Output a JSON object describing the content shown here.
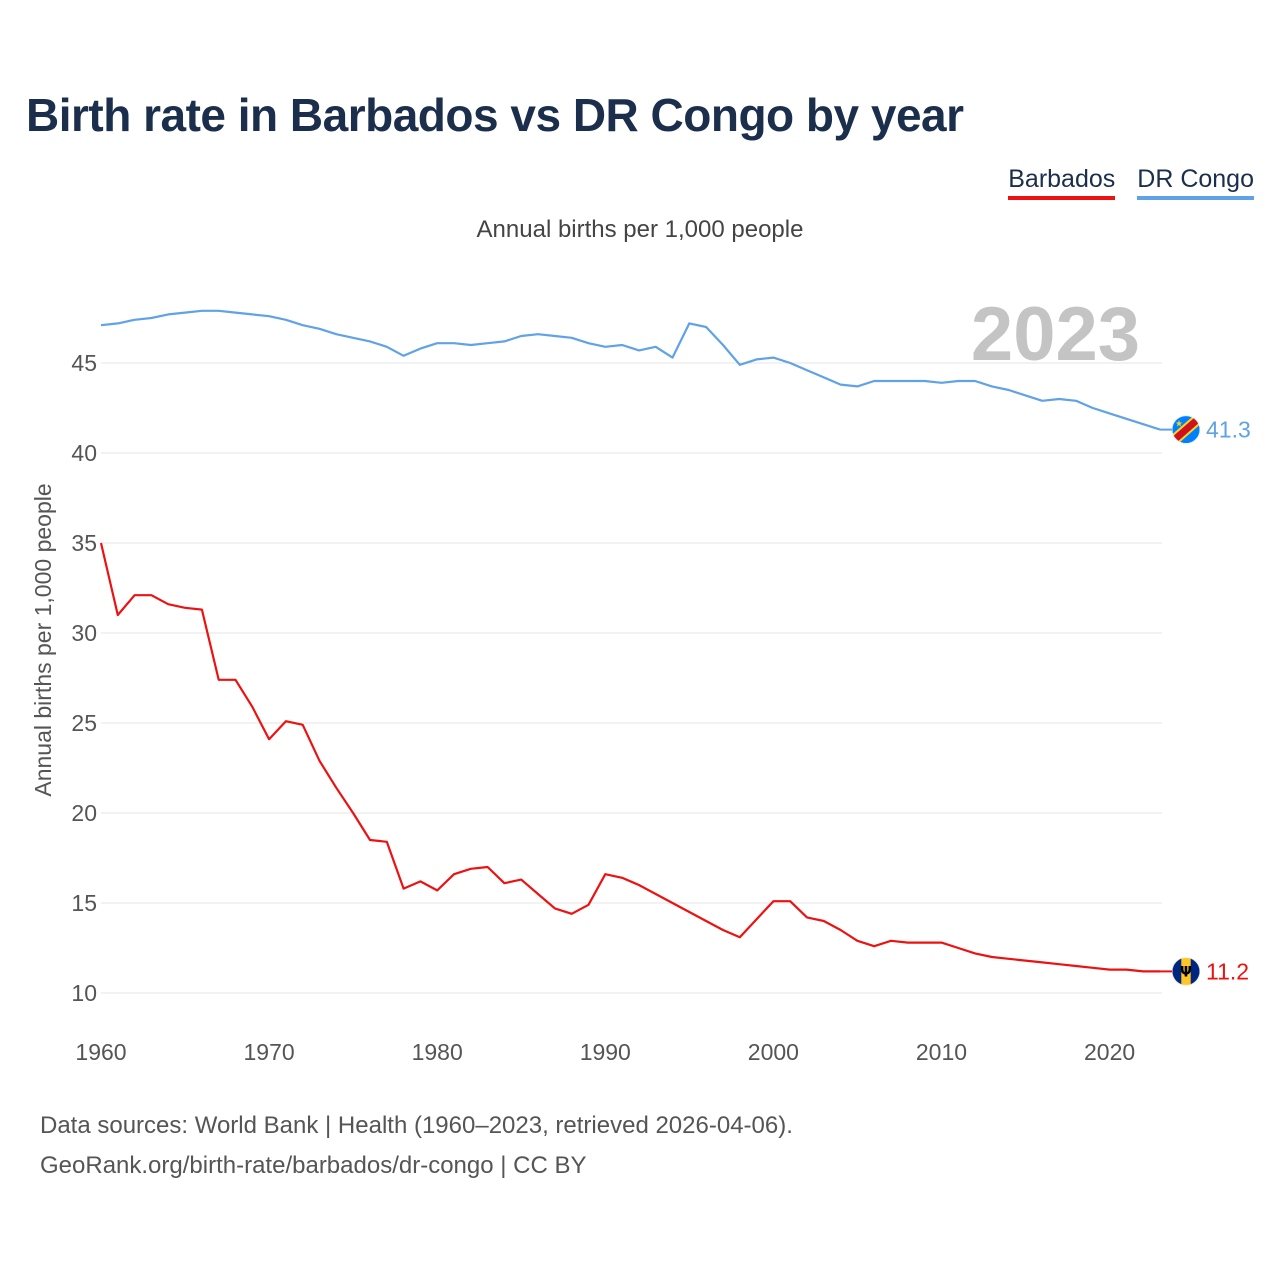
{
  "title": "Birth rate in Barbados vs DR Congo by year",
  "subtitle": "Annual births per 1,000 people",
  "legend": [
    {
      "label": "Barbados",
      "color": "#ee1111"
    },
    {
      "label": "DR Congo",
      "color": "#5fa2e6"
    }
  ],
  "source_lines": [
    "Data sources: World Bank | Health (1960–2023, retrieved 2026-04-06).",
    "GeoRank.org/birth-rate/barbados/dr-congo | CC BY"
  ],
  "chart_data": {
    "type": "line",
    "title": "Birth rate in Barbados vs DR Congo by year",
    "ylabel": "Annual births per 1,000 people",
    "xlabel": "",
    "year_label": "2023",
    "xlim": [
      1960,
      2023
    ],
    "ylim": [
      10,
      48
    ],
    "x_ticks": [
      1960,
      1970,
      1980,
      1990,
      2000,
      2010,
      2020
    ],
    "y_ticks": [
      10,
      15,
      20,
      25,
      30,
      35,
      40,
      45
    ],
    "grid": true,
    "x": [
      1960,
      1961,
      1962,
      1963,
      1964,
      1965,
      1966,
      1967,
      1968,
      1969,
      1970,
      1971,
      1972,
      1973,
      1974,
      1975,
      1976,
      1977,
      1978,
      1979,
      1980,
      1981,
      1982,
      1983,
      1984,
      1985,
      1986,
      1987,
      1988,
      1989,
      1990,
      1991,
      1992,
      1993,
      1994,
      1995,
      1996,
      1997,
      1998,
      1999,
      2000,
      2001,
      2002,
      2003,
      2004,
      2005,
      2006,
      2007,
      2008,
      2009,
      2010,
      2011,
      2012,
      2013,
      2014,
      2015,
      2016,
      2017,
      2018,
      2019,
      2020,
      2021,
      2022,
      2023
    ],
    "series": [
      {
        "name": "Barbados",
        "color": "#ee1111",
        "end_label": "11.2",
        "values": [
          35.0,
          31.0,
          32.1,
          32.1,
          31.6,
          31.4,
          31.3,
          27.4,
          27.4,
          25.9,
          24.1,
          25.1,
          24.9,
          22.9,
          21.4,
          20.0,
          18.5,
          18.4,
          15.8,
          16.2,
          15.7,
          16.6,
          16.9,
          17.0,
          16.1,
          16.3,
          15.5,
          14.7,
          14.4,
          14.9,
          16.6,
          16.4,
          16.0,
          15.5,
          15.0,
          14.5,
          14.0,
          13.5,
          13.1,
          14.1,
          15.1,
          15.1,
          14.2,
          14.0,
          13.5,
          12.9,
          12.6,
          12.9,
          12.8,
          12.8,
          12.8,
          12.5,
          12.2,
          12.0,
          11.9,
          11.8,
          11.7,
          11.6,
          11.5,
          11.4,
          11.3,
          11.3,
          11.2,
          11.2
        ]
      },
      {
        "name": "DR Congo",
        "color": "#5fa2e6",
        "end_label": "41.3",
        "values": [
          47.1,
          47.2,
          47.4,
          47.5,
          47.7,
          47.8,
          47.9,
          47.9,
          47.8,
          47.7,
          47.6,
          47.4,
          47.1,
          46.9,
          46.6,
          46.4,
          46.2,
          45.9,
          45.4,
          45.8,
          46.1,
          46.1,
          46.0,
          46.1,
          46.2,
          46.5,
          46.6,
          46.5,
          46.4,
          46.1,
          45.9,
          46.0,
          45.7,
          45.9,
          45.3,
          47.2,
          47.0,
          46.0,
          44.9,
          45.2,
          45.3,
          45.0,
          44.6,
          44.2,
          43.8,
          43.7,
          44.0,
          44.0,
          44.0,
          44.0,
          43.9,
          44.0,
          44.0,
          43.7,
          43.5,
          43.2,
          42.9,
          43.0,
          42.9,
          42.5,
          42.2,
          41.9,
          41.6,
          41.3
        ]
      }
    ]
  }
}
